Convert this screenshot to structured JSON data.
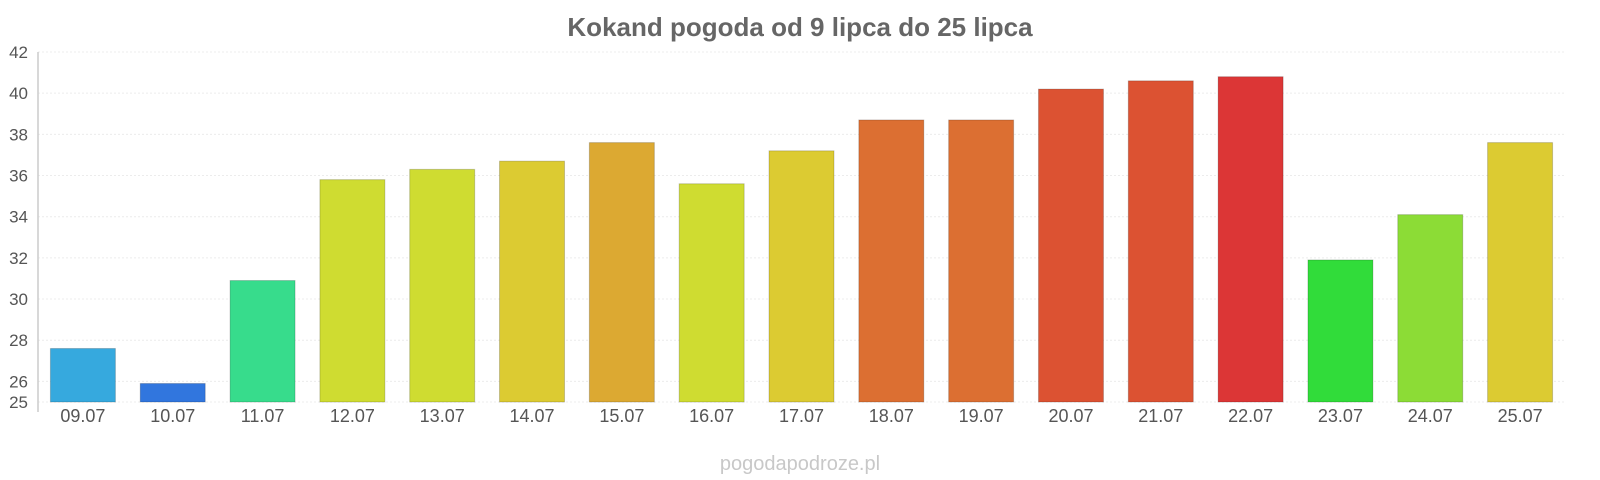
{
  "footer": {
    "watermark": "pogodapodroze.pl"
  },
  "chart_data": {
    "type": "bar",
    "title": "Kokand pogoda od 9 lipca do 25 lipca",
    "xlabel": "",
    "ylabel": "",
    "ylim": [
      25,
      42
    ],
    "yticks": [
      25,
      26,
      28,
      30,
      32,
      34,
      36,
      38,
      40,
      42
    ],
    "grid": true,
    "categories": [
      "09.07",
      "10.07",
      "11.07",
      "12.07",
      "13.07",
      "14.07",
      "15.07",
      "16.07",
      "17.07",
      "18.07",
      "19.07",
      "20.07",
      "21.07",
      "22.07",
      "23.07",
      "24.07",
      "25.07"
    ],
    "values": [
      27.6,
      25.9,
      30.9,
      35.8,
      36.3,
      36.7,
      37.6,
      35.6,
      37.2,
      38.7,
      38.7,
      40.2,
      40.6,
      40.8,
      31.9,
      34.1,
      37.6
    ],
    "colors": [
      "#36a9de",
      "#3176de",
      "#37dc8c",
      "#cfdc31",
      "#cfdc31",
      "#dccb32",
      "#dca932",
      "#cfdc31",
      "#dccb32",
      "#dc6f32",
      "#dc6f32",
      "#dc5232",
      "#dc5232",
      "#dc3636",
      "#31dc3a",
      "#8cdc36",
      "#dccb32"
    ]
  }
}
